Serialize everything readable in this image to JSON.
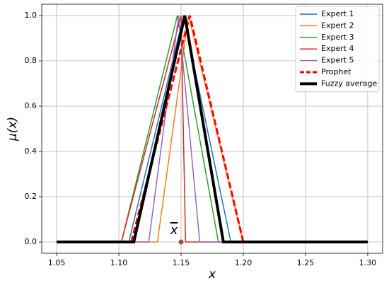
{
  "chart_data": {
    "type": "line",
    "x_label": "x",
    "y_label": "μ(x)",
    "xlim": [
      1.038,
      1.312
    ],
    "ylim": [
      -0.05,
      1.05
    ],
    "xticks": [
      1.05,
      {
        "value": 1.1,
        "label": "1.10"
      },
      1.15,
      {
        "value": 1.2,
        "label": "1.20"
      },
      1.25,
      {
        "value": 1.3,
        "label": "1.30"
      }
    ],
    "yticks": [
      {
        "value": 0,
        "label": "0.0"
      },
      0.2,
      0.4,
      0.6,
      0.8,
      {
        "value": 1,
        "label": "1.0"
      }
    ],
    "grid": true,
    "legend": "upper right",
    "series": [
      {
        "name": "Expert 1",
        "color": "#1f77b4",
        "x": [
          1.05,
          1.108,
          1.152,
          1.19,
          1.3
        ],
        "values": [
          0,
          0,
          1,
          0,
          0
        ]
      },
      {
        "name": "Expert 2",
        "color": "#ff7f0e",
        "x": [
          1.05,
          1.131,
          1.156,
          1.2,
          1.3
        ],
        "values": [
          0,
          0,
          1,
          0,
          0
        ]
      },
      {
        "name": "Expert 3",
        "color": "#2ca02c",
        "x": [
          1.05,
          1.102,
          1.147,
          1.18,
          1.3
        ],
        "values": [
          0,
          0,
          1,
          0,
          0
        ]
      },
      {
        "name": "Expert 4",
        "color": "#d62728",
        "x": [
          1.05,
          1.102,
          1.15,
          1.1536,
          1.3
        ],
        "values": [
          0,
          0,
          1,
          0,
          0
        ]
      },
      {
        "name": "Expert 5",
        "color": "#9467bd",
        "x": [
          1.05,
          1.124,
          1.148,
          1.165,
          1.3
        ],
        "values": [
          0,
          0,
          1,
          0,
          0
        ]
      },
      {
        "name": "Prophet",
        "color": "#ff0000",
        "linestyle": "dashed",
        "linewidth": 3,
        "x": [
          1.11,
          1.157,
          1.2
        ],
        "values": [
          0,
          1,
          0
        ]
      },
      {
        "name": "Fuzzy average",
        "color": "#000000",
        "linewidth": 4,
        "x": [
          1.05,
          1.112,
          1.153,
          1.184,
          1.3
        ],
        "values": [
          0,
          0,
          1,
          0,
          0
        ]
      }
    ],
    "mean_marker": {
      "x": 1.15,
      "y": 0,
      "label": "x",
      "color": "#8c564b"
    }
  }
}
